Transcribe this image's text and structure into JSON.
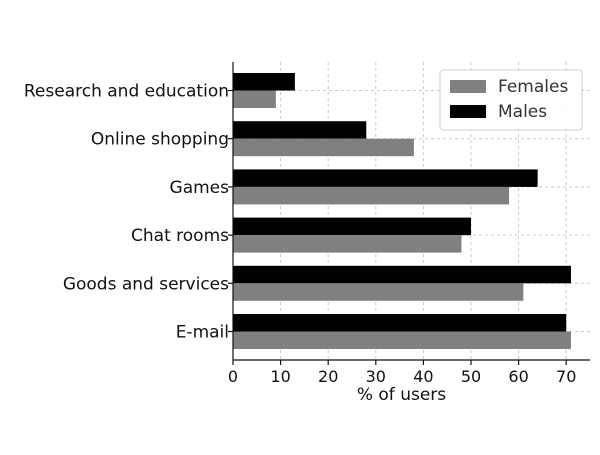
{
  "chart_data": {
    "type": "bar",
    "orientation": "horizontal",
    "title": "",
    "xlabel": "% of users",
    "ylabel": "",
    "xlim": [
      0,
      75
    ],
    "xticks": [
      0,
      10,
      20,
      30,
      40,
      50,
      60,
      70
    ],
    "grid": true,
    "legend": "top-right",
    "categories": [
      "Research and education",
      "Online shopping",
      "Games",
      "Chat rooms",
      "Goods and services",
      "E-mail"
    ],
    "series": [
      {
        "name": "Females",
        "color": "#808080",
        "values": [
          9,
          38,
          58,
          48,
          61,
          71
        ]
      },
      {
        "name": "Males",
        "color": "#000000",
        "values": [
          13,
          28,
          64,
          50,
          71,
          70
        ]
      }
    ]
  }
}
